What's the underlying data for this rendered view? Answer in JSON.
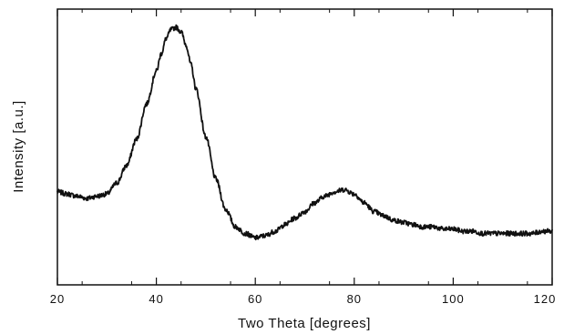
{
  "chart_data": {
    "type": "line",
    "title": "",
    "xlabel": "Two Theta [degrees]",
    "ylabel": "Intensity [a.u.]",
    "xlim": [
      20,
      120
    ],
    "ylim": [
      0,
      1
    ],
    "x_ticks": [
      20,
      40,
      60,
      80,
      100,
      120
    ],
    "x_tick_labels": [
      "20",
      "40",
      "60",
      "80",
      "100",
      "120"
    ],
    "y_tick_labels_shown": false,
    "grid": false,
    "legend": "none",
    "line_color": "#111111",
    "series": [
      {
        "x": [
          20,
          22,
          24,
          26,
          28,
          30,
          32,
          34,
          36,
          38,
          40,
          41,
          42,
          43,
          44,
          45,
          46,
          47,
          48,
          50,
          52,
          54,
          56,
          58,
          60,
          62,
          64,
          66,
          68,
          70,
          72,
          74,
          76,
          78,
          80,
          82,
          84,
          86,
          88,
          90,
          92,
          94,
          96,
          98,
          100,
          102,
          104,
          106,
          108,
          110,
          112,
          114,
          116,
          118,
          120
        ],
        "y": [
          0.25,
          0.24,
          0.23,
          0.22,
          0.23,
          0.24,
          0.29,
          0.37,
          0.49,
          0.65,
          0.8,
          0.88,
          0.95,
          0.99,
          1.0,
          0.98,
          0.92,
          0.83,
          0.72,
          0.5,
          0.31,
          0.17,
          0.09,
          0.06,
          0.04,
          0.05,
          0.07,
          0.1,
          0.13,
          0.16,
          0.2,
          0.23,
          0.25,
          0.26,
          0.24,
          0.2,
          0.16,
          0.14,
          0.12,
          0.11,
          0.1,
          0.09,
          0.09,
          0.08,
          0.08,
          0.07,
          0.07,
          0.06,
          0.06,
          0.06,
          0.06,
          0.06,
          0.06,
          0.07,
          0.07
        ]
      }
    ]
  }
}
